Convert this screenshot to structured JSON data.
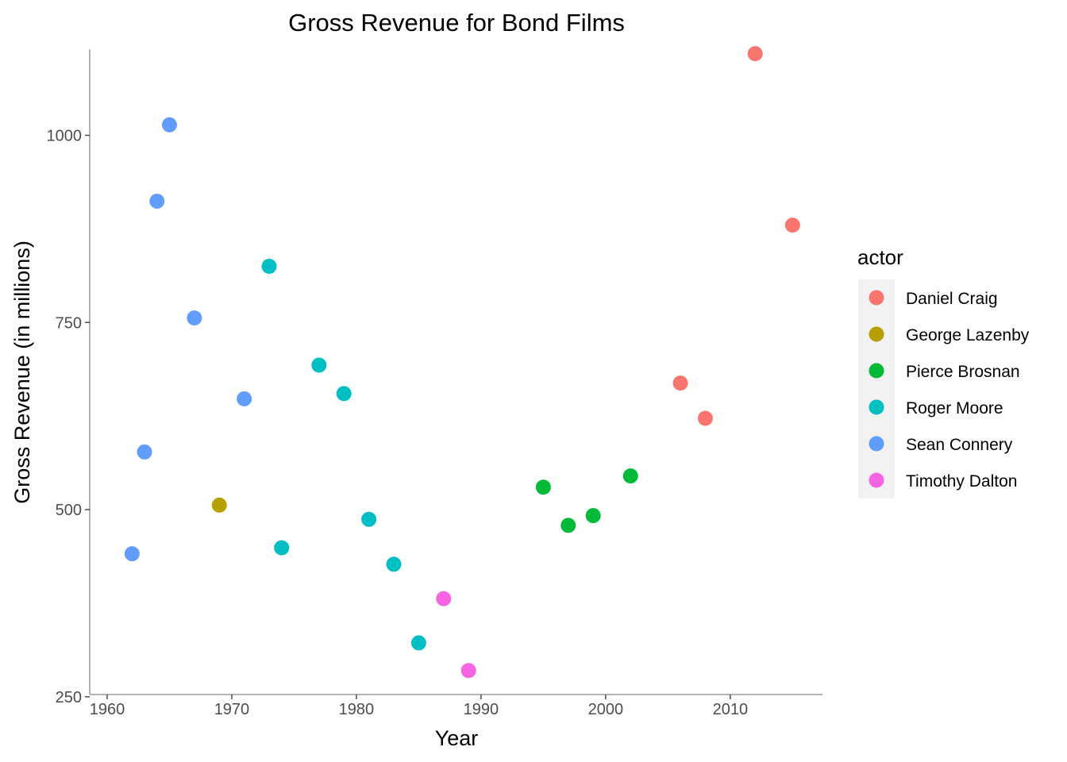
{
  "chart_data": {
    "type": "scatter",
    "title": "Gross Revenue for Bond Films",
    "xlabel": "Year",
    "ylabel": "Gross Revenue (in millions)",
    "xlim": [
      1958.6,
      2017.4
    ],
    "ylim": [
      253,
      1115
    ],
    "x_ticks": [
      1960,
      1970,
      1980,
      1990,
      2000,
      2010
    ],
    "y_ticks": [
      250,
      500,
      750,
      1000
    ],
    "grid": false,
    "legend": {
      "title": "actor",
      "position": "right"
    },
    "series": [
      {
        "name": "Daniel Craig",
        "color": "#F8766D",
        "points": [
          [
            2006,
            669
          ],
          [
            2008,
            622
          ],
          [
            2012,
            1109
          ],
          [
            2015,
            880
          ]
        ]
      },
      {
        "name": "George Lazenby",
        "color": "#B79F00",
        "points": [
          [
            1969,
            506
          ]
        ]
      },
      {
        "name": "Pierce Brosnan",
        "color": "#00BA38",
        "points": [
          [
            1995,
            530
          ],
          [
            1997,
            479
          ],
          [
            1999,
            492
          ],
          [
            2002,
            545
          ]
        ]
      },
      {
        "name": "Roger Moore",
        "color": "#00BFC4",
        "points": [
          [
            1973,
            825
          ],
          [
            1974,
            449
          ],
          [
            1977,
            693
          ],
          [
            1979,
            655
          ],
          [
            1981,
            487
          ],
          [
            1983,
            427
          ],
          [
            1985,
            322
          ]
        ]
      },
      {
        "name": "Sean Connery",
        "color": "#619CFF",
        "points": [
          [
            1962,
            441
          ],
          [
            1963,
            577
          ],
          [
            1964,
            912
          ],
          [
            1965,
            1014
          ],
          [
            1967,
            756
          ],
          [
            1971,
            648
          ]
        ]
      },
      {
        "name": "Timothy Dalton",
        "color": "#F564E3",
        "points": [
          [
            1987,
            381
          ],
          [
            1989,
            285
          ]
        ]
      }
    ]
  }
}
